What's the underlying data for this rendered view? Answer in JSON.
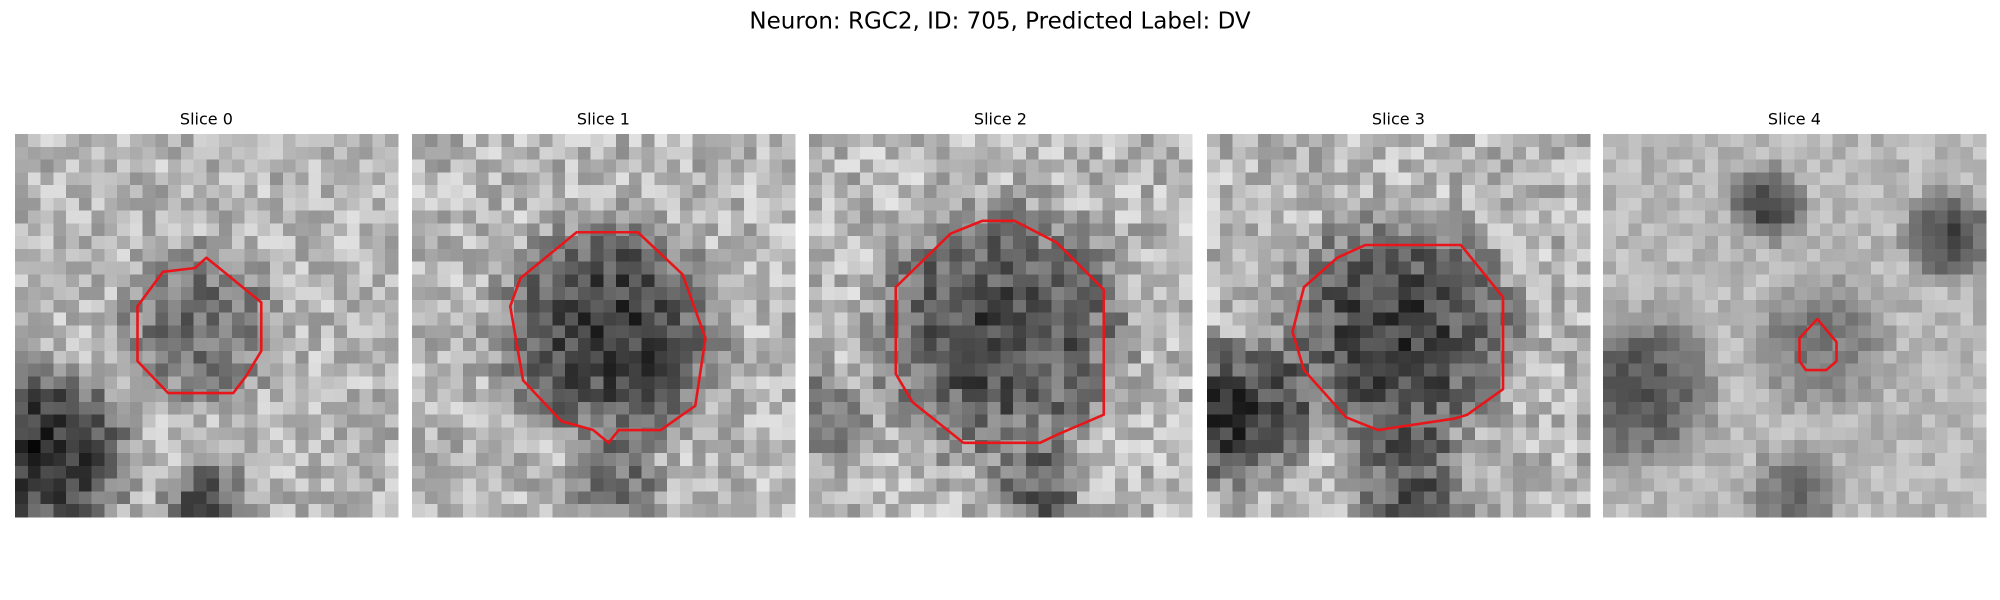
{
  "title": "Neuron: RGC2, ID: 705, Predicted Label: DV",
  "panels": [
    {
      "title": "Slice 0"
    },
    {
      "title": "Slice 1"
    },
    {
      "title": "Slice 2"
    },
    {
      "title": "Slice 3"
    },
    {
      "title": "Slice 4"
    }
  ]
}
